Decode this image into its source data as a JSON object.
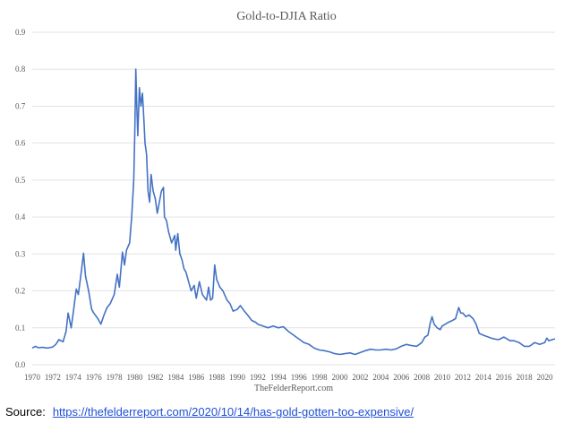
{
  "chart_data": {
    "type": "line",
    "title": "Gold-to-DJIA Ratio",
    "credit": "TheFelderReport.com",
    "xlabel": "",
    "ylabel": "",
    "xlim": [
      1970,
      2021
    ],
    "ylim": [
      0,
      0.9
    ],
    "x_ticks": [
      "1970",
      "1972",
      "1974",
      "1976",
      "1978",
      "1980",
      "1982",
      "1984",
      "1986",
      "1988",
      "1990",
      "1992",
      "1994",
      "1996",
      "1998",
      "2000",
      "2002",
      "2004",
      "2006",
      "2008",
      "2010",
      "2012",
      "2014",
      "2016",
      "2018",
      "2020"
    ],
    "y_ticks": [
      "0.0",
      "0.1",
      "0.2",
      "0.3",
      "0.4",
      "0.5",
      "0.6",
      "0.7",
      "0.8",
      "0.9"
    ],
    "grid": "horizontal",
    "color": "#4472c4",
    "series": [
      {
        "name": "",
        "points": [
          [
            1970.0,
            0.045
          ],
          [
            1970.3,
            0.05
          ],
          [
            1970.6,
            0.046
          ],
          [
            1971.0,
            0.047
          ],
          [
            1971.5,
            0.045
          ],
          [
            1972.0,
            0.048
          ],
          [
            1972.3,
            0.055
          ],
          [
            1972.6,
            0.068
          ],
          [
            1973.0,
            0.062
          ],
          [
            1973.3,
            0.09
          ],
          [
            1973.5,
            0.14
          ],
          [
            1973.8,
            0.1
          ],
          [
            1974.0,
            0.14
          ],
          [
            1974.3,
            0.205
          ],
          [
            1974.5,
            0.19
          ],
          [
            1974.8,
            0.255
          ],
          [
            1975.0,
            0.302
          ],
          [
            1975.2,
            0.24
          ],
          [
            1975.5,
            0.2
          ],
          [
            1975.8,
            0.15
          ],
          [
            1976.0,
            0.14
          ],
          [
            1976.4,
            0.125
          ],
          [
            1976.7,
            0.11
          ],
          [
            1977.0,
            0.135
          ],
          [
            1977.3,
            0.155
          ],
          [
            1977.6,
            0.165
          ],
          [
            1978.0,
            0.19
          ],
          [
            1978.3,
            0.245
          ],
          [
            1978.5,
            0.21
          ],
          [
            1978.8,
            0.305
          ],
          [
            1979.0,
            0.27
          ],
          [
            1979.2,
            0.31
          ],
          [
            1979.5,
            0.33
          ],
          [
            1979.7,
            0.4
          ],
          [
            1979.9,
            0.5
          ],
          [
            1980.0,
            0.62
          ],
          [
            1980.1,
            0.8
          ],
          [
            1980.2,
            0.7
          ],
          [
            1980.3,
            0.62
          ],
          [
            1980.45,
            0.75
          ],
          [
            1980.6,
            0.7
          ],
          [
            1980.75,
            0.735
          ],
          [
            1980.9,
            0.66
          ],
          [
            1981.0,
            0.6
          ],
          [
            1981.15,
            0.57
          ],
          [
            1981.3,
            0.47
          ],
          [
            1981.45,
            0.44
          ],
          [
            1981.6,
            0.515
          ],
          [
            1981.8,
            0.47
          ],
          [
            1982.0,
            0.45
          ],
          [
            1982.2,
            0.41
          ],
          [
            1982.4,
            0.44
          ],
          [
            1982.6,
            0.47
          ],
          [
            1982.8,
            0.48
          ],
          [
            1982.9,
            0.4
          ],
          [
            1983.1,
            0.39
          ],
          [
            1983.3,
            0.36
          ],
          [
            1983.6,
            0.33
          ],
          [
            1983.9,
            0.35
          ],
          [
            1984.0,
            0.31
          ],
          [
            1984.2,
            0.355
          ],
          [
            1984.4,
            0.3
          ],
          [
            1984.6,
            0.285
          ],
          [
            1984.8,
            0.26
          ],
          [
            1985.0,
            0.25
          ],
          [
            1985.2,
            0.23
          ],
          [
            1985.5,
            0.2
          ],
          [
            1985.8,
            0.215
          ],
          [
            1986.0,
            0.18
          ],
          [
            1986.3,
            0.225
          ],
          [
            1986.6,
            0.19
          ],
          [
            1987.0,
            0.175
          ],
          [
            1987.2,
            0.21
          ],
          [
            1987.4,
            0.175
          ],
          [
            1987.6,
            0.18
          ],
          [
            1987.8,
            0.27
          ],
          [
            1988.0,
            0.23
          ],
          [
            1988.3,
            0.21
          ],
          [
            1988.6,
            0.2
          ],
          [
            1989.0,
            0.175
          ],
          [
            1989.3,
            0.165
          ],
          [
            1989.6,
            0.145
          ],
          [
            1990.0,
            0.15
          ],
          [
            1990.3,
            0.16
          ],
          [
            1990.7,
            0.145
          ],
          [
            1991.0,
            0.135
          ],
          [
            1991.4,
            0.12
          ],
          [
            1991.8,
            0.115
          ],
          [
            1992.0,
            0.11
          ],
          [
            1992.5,
            0.105
          ],
          [
            1993.0,
            0.1
          ],
          [
            1993.5,
            0.105
          ],
          [
            1994.0,
            0.1
          ],
          [
            1994.5,
            0.103
          ],
          [
            1995.0,
            0.09
          ],
          [
            1995.5,
            0.08
          ],
          [
            1996.0,
            0.07
          ],
          [
            1996.5,
            0.06
          ],
          [
            1997.0,
            0.055
          ],
          [
            1997.5,
            0.045
          ],
          [
            1998.0,
            0.04
          ],
          [
            1998.5,
            0.038
          ],
          [
            1999.0,
            0.035
          ],
          [
            1999.5,
            0.03
          ],
          [
            2000.0,
            0.028
          ],
          [
            2000.5,
            0.03
          ],
          [
            2001.0,
            0.032
          ],
          [
            2001.5,
            0.028
          ],
          [
            2002.0,
            0.033
          ],
          [
            2002.5,
            0.038
          ],
          [
            2003.0,
            0.042
          ],
          [
            2003.5,
            0.04
          ],
          [
            2004.0,
            0.04
          ],
          [
            2004.5,
            0.042
          ],
          [
            2005.0,
            0.04
          ],
          [
            2005.5,
            0.043
          ],
          [
            2006.0,
            0.05
          ],
          [
            2006.5,
            0.055
          ],
          [
            2007.0,
            0.052
          ],
          [
            2007.5,
            0.05
          ],
          [
            2008.0,
            0.06
          ],
          [
            2008.3,
            0.075
          ],
          [
            2008.6,
            0.08
          ],
          [
            2008.8,
            0.11
          ],
          [
            2009.0,
            0.13
          ],
          [
            2009.2,
            0.11
          ],
          [
            2009.5,
            0.1
          ],
          [
            2009.8,
            0.095
          ],
          [
            2010.0,
            0.105
          ],
          [
            2010.3,
            0.11
          ],
          [
            2010.6,
            0.115
          ],
          [
            2011.0,
            0.12
          ],
          [
            2011.3,
            0.125
          ],
          [
            2011.6,
            0.155
          ],
          [
            2011.8,
            0.14
          ],
          [
            2012.0,
            0.14
          ],
          [
            2012.3,
            0.13
          ],
          [
            2012.6,
            0.135
          ],
          [
            2013.0,
            0.125
          ],
          [
            2013.3,
            0.11
          ],
          [
            2013.6,
            0.085
          ],
          [
            2014.0,
            0.08
          ],
          [
            2014.5,
            0.075
          ],
          [
            2015.0,
            0.07
          ],
          [
            2015.5,
            0.068
          ],
          [
            2016.0,
            0.075
          ],
          [
            2016.3,
            0.07
          ],
          [
            2016.6,
            0.065
          ],
          [
            2017.0,
            0.065
          ],
          [
            2017.5,
            0.06
          ],
          [
            2018.0,
            0.05
          ],
          [
            2018.5,
            0.05
          ],
          [
            2019.0,
            0.06
          ],
          [
            2019.5,
            0.055
          ],
          [
            2020.0,
            0.06
          ],
          [
            2020.2,
            0.072
          ],
          [
            2020.4,
            0.065
          ],
          [
            2020.7,
            0.068
          ],
          [
            2021.0,
            0.07
          ]
        ]
      }
    ]
  },
  "source": {
    "label": "Source:",
    "link_text": "https://thefelderreport.com/2020/10/14/has-gold-gotten-too-expensive/"
  }
}
